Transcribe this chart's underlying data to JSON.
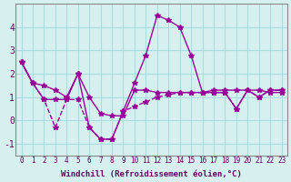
{
  "background_color": "#d6f0f0",
  "grid_color": "#aadddd",
  "line_color": "#990099",
  "x_labels": [
    "0",
    "1",
    "2",
    "3",
    "4",
    "5",
    "6",
    "7",
    "8",
    "9",
    "10",
    "11",
    "12",
    "13",
    "14",
    "15",
    "16",
    "17",
    "18",
    "19",
    "20",
    "21",
    "22",
    "23"
  ],
  "xlabel": "Windchill (Refroidissement éolien,°C)",
  "ylim": [
    -1.5,
    5.0
  ],
  "yticks": [
    -1,
    0,
    1,
    2,
    3,
    4
  ],
  "series1": [
    2.5,
    1.6,
    1.5,
    1.3,
    1.0,
    2.0,
    1.0,
    0.3,
    0.2,
    0.2,
    1.3,
    1.3,
    1.2,
    1.2,
    1.2,
    1.2,
    1.2,
    1.3,
    1.3,
    1.3,
    1.3,
    1.3,
    1.2,
    1.2
  ],
  "series2": [
    2.5,
    1.6,
    0.9,
    0.9,
    0.9,
    2.0,
    -0.3,
    -0.8,
    -0.8,
    0.4,
    1.6,
    2.8,
    4.5,
    4.3,
    4.0,
    2.8,
    1.2,
    1.2,
    1.2,
    0.5,
    1.3,
    1.0,
    1.3,
    1.3
  ],
  "series3": [
    2.5,
    1.6,
    0.9,
    -0.3,
    0.9,
    0.9,
    -0.3,
    -0.8,
    -0.8,
    0.4,
    0.6,
    0.8,
    1.0,
    1.1,
    1.2,
    1.2,
    1.2,
    1.2,
    1.2,
    0.5,
    1.3,
    1.0,
    1.3,
    1.3
  ]
}
